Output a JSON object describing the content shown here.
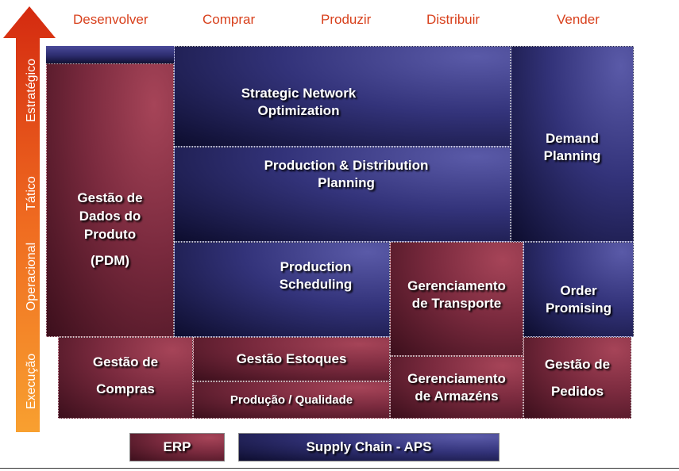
{
  "columns": [
    "Desenvolver",
    "Comprar",
    "Produzir",
    "Distribuir",
    "Vender"
  ],
  "axis_levels": [
    "Estratégico",
    "Tático",
    "Operacional",
    "Execução"
  ],
  "colors": {
    "erp": "#7a2a3e",
    "aps": "#33337a",
    "arrow_top": "#d42a10",
    "arrow_bottom": "#f8a030",
    "header_text": "#d8401c"
  },
  "boxes": {
    "strategic_network": [
      "Strategic Network",
      "Optimization"
    ],
    "prod_dist_planning": [
      "Production & Distribution",
      "Planning"
    ],
    "demand_planning": [
      "Demand",
      "Planning"
    ],
    "pdm": [
      "Gestão de",
      "Dados do",
      "Produto",
      "(PDM)"
    ],
    "production_scheduling": [
      "Production",
      "Scheduling"
    ],
    "transport": [
      "Gerenciamento",
      "de Transporte"
    ],
    "order_promising": [
      "Order",
      "Promising"
    ],
    "compras": [
      "Gestão de",
      "Compras"
    ],
    "estoques": "Gestão Estoques",
    "producao_qualidade": "Produção / Qualidade",
    "armazens": [
      "Gerenciamento",
      "de Armazéns"
    ],
    "pedidos": [
      "Gestão de",
      "Pedidos"
    ]
  },
  "legend": {
    "erp": "ERP",
    "aps": "Supply Chain - APS"
  }
}
